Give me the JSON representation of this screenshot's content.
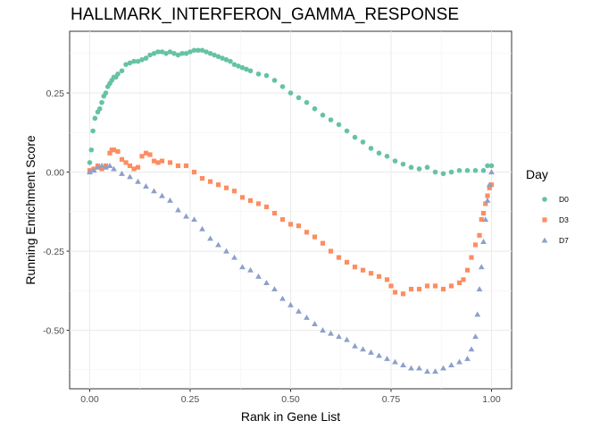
{
  "chart_data": {
    "type": "scatter",
    "title": "HALLMARK_INTERFERON_GAMMA_RESPONSE",
    "xlabel": "Rank in Gene List",
    "ylabel": "Running Enrichment Score",
    "xlim": [
      -0.05,
      1.05
    ],
    "ylim": [
      -0.685,
      0.445
    ],
    "x_ticks": [
      0.0,
      0.25,
      0.5,
      0.75,
      1.0
    ],
    "x_tick_labels": [
      "0.00",
      "0.25",
      "0.50",
      "0.75",
      "1.00"
    ],
    "y_ticks": [
      -0.5,
      -0.25,
      0.0,
      0.25
    ],
    "y_tick_labels": [
      "-0.50",
      "-0.25",
      "0.00",
      "0.25"
    ],
    "grid": true,
    "legend": {
      "title": "Day",
      "position": "right"
    },
    "series": [
      {
        "name": "D0",
        "marker": "circle",
        "color": "#66c2a5",
        "x": [
          0.0,
          0.004,
          0.008,
          0.013,
          0.02,
          0.025,
          0.03,
          0.035,
          0.04,
          0.045,
          0.05,
          0.055,
          0.06,
          0.065,
          0.07,
          0.08,
          0.09,
          0.1,
          0.11,
          0.12,
          0.13,
          0.14,
          0.15,
          0.16,
          0.17,
          0.18,
          0.19,
          0.2,
          0.21,
          0.22,
          0.23,
          0.24,
          0.25,
          0.26,
          0.27,
          0.28,
          0.29,
          0.3,
          0.31,
          0.32,
          0.33,
          0.34,
          0.35,
          0.36,
          0.37,
          0.38,
          0.39,
          0.4,
          0.42,
          0.44,
          0.46,
          0.48,
          0.5,
          0.52,
          0.54,
          0.56,
          0.58,
          0.6,
          0.62,
          0.64,
          0.66,
          0.68,
          0.7,
          0.72,
          0.74,
          0.76,
          0.78,
          0.8,
          0.82,
          0.84,
          0.86,
          0.88,
          0.9,
          0.92,
          0.94,
          0.96,
          0.98,
          0.99,
          1.0
        ],
        "y": [
          0.03,
          0.07,
          0.13,
          0.17,
          0.19,
          0.2,
          0.22,
          0.24,
          0.25,
          0.27,
          0.28,
          0.29,
          0.3,
          0.3,
          0.31,
          0.32,
          0.34,
          0.345,
          0.35,
          0.35,
          0.355,
          0.36,
          0.37,
          0.375,
          0.38,
          0.38,
          0.375,
          0.38,
          0.375,
          0.37,
          0.375,
          0.375,
          0.38,
          0.385,
          0.385,
          0.385,
          0.38,
          0.375,
          0.37,
          0.365,
          0.36,
          0.355,
          0.35,
          0.34,
          0.335,
          0.33,
          0.325,
          0.32,
          0.31,
          0.305,
          0.29,
          0.27,
          0.25,
          0.235,
          0.22,
          0.2,
          0.18,
          0.165,
          0.15,
          0.13,
          0.11,
          0.095,
          0.075,
          0.06,
          0.05,
          0.035,
          0.025,
          0.015,
          0.01,
          0.015,
          0.0,
          -0.005,
          0.0,
          0.005,
          0.005,
          0.005,
          0.005,
          0.02,
          0.02
        ]
      },
      {
        "name": "D3",
        "marker": "square",
        "color": "#fc8d62",
        "x": [
          0.0,
          0.01,
          0.02,
          0.03,
          0.04,
          0.05,
          0.055,
          0.06,
          0.07,
          0.08,
          0.09,
          0.1,
          0.11,
          0.12,
          0.13,
          0.14,
          0.15,
          0.16,
          0.17,
          0.18,
          0.2,
          0.22,
          0.24,
          0.26,
          0.28,
          0.3,
          0.32,
          0.34,
          0.36,
          0.38,
          0.4,
          0.42,
          0.44,
          0.46,
          0.48,
          0.5,
          0.52,
          0.54,
          0.56,
          0.58,
          0.6,
          0.62,
          0.64,
          0.66,
          0.68,
          0.7,
          0.72,
          0.74,
          0.75,
          0.76,
          0.78,
          0.8,
          0.82,
          0.84,
          0.86,
          0.88,
          0.9,
          0.92,
          0.93,
          0.94,
          0.95,
          0.96,
          0.97,
          0.975,
          0.98,
          0.985,
          0.99,
          0.995,
          1.0
        ],
        "y": [
          0.005,
          0.01,
          0.02,
          0.01,
          0.02,
          0.06,
          0.07,
          0.07,
          0.065,
          0.04,
          0.03,
          0.02,
          0.01,
          0.015,
          0.05,
          0.06,
          0.055,
          0.035,
          0.03,
          0.035,
          0.03,
          0.02,
          0.02,
          0.0,
          -0.02,
          -0.03,
          -0.04,
          -0.05,
          -0.06,
          -0.08,
          -0.09,
          -0.1,
          -0.11,
          -0.13,
          -0.15,
          -0.165,
          -0.17,
          -0.19,
          -0.205,
          -0.225,
          -0.25,
          -0.27,
          -0.285,
          -0.3,
          -0.31,
          -0.32,
          -0.33,
          -0.34,
          -0.36,
          -0.38,
          -0.385,
          -0.37,
          -0.37,
          -0.36,
          -0.36,
          -0.37,
          -0.36,
          -0.35,
          -0.34,
          -0.31,
          -0.27,
          -0.23,
          -0.2,
          -0.15,
          -0.13,
          -0.1,
          -0.075,
          -0.05,
          -0.04
        ]
      },
      {
        "name": "D7",
        "marker": "triangle",
        "color": "#8da0cb",
        "x": [
          0.0,
          0.01,
          0.02,
          0.03,
          0.04,
          0.05,
          0.06,
          0.08,
          0.1,
          0.12,
          0.14,
          0.16,
          0.18,
          0.2,
          0.22,
          0.24,
          0.26,
          0.28,
          0.3,
          0.32,
          0.34,
          0.36,
          0.38,
          0.4,
          0.42,
          0.44,
          0.46,
          0.48,
          0.5,
          0.52,
          0.54,
          0.56,
          0.58,
          0.6,
          0.62,
          0.64,
          0.66,
          0.68,
          0.7,
          0.72,
          0.74,
          0.76,
          0.78,
          0.8,
          0.82,
          0.84,
          0.86,
          0.88,
          0.9,
          0.92,
          0.94,
          0.95,
          0.96,
          0.965,
          0.97,
          0.975,
          0.98,
          0.985,
          0.99,
          0.995,
          1.0
        ],
        "y": [
          0.0,
          0.005,
          0.015,
          0.02,
          0.015,
          0.02,
          0.01,
          -0.005,
          -0.015,
          -0.03,
          -0.045,
          -0.06,
          -0.075,
          -0.09,
          -0.12,
          -0.14,
          -0.15,
          -0.18,
          -0.21,
          -0.23,
          -0.25,
          -0.27,
          -0.3,
          -0.31,
          -0.33,
          -0.35,
          -0.37,
          -0.4,
          -0.42,
          -0.44,
          -0.46,
          -0.48,
          -0.5,
          -0.51,
          -0.52,
          -0.53,
          -0.55,
          -0.56,
          -0.57,
          -0.58,
          -0.59,
          -0.6,
          -0.61,
          -0.62,
          -0.62,
          -0.63,
          -0.63,
          -0.62,
          -0.61,
          -0.6,
          -0.59,
          -0.56,
          -0.52,
          -0.45,
          -0.37,
          -0.3,
          -0.22,
          -0.15,
          -0.09,
          -0.04,
          0.0
        ]
      }
    ]
  }
}
